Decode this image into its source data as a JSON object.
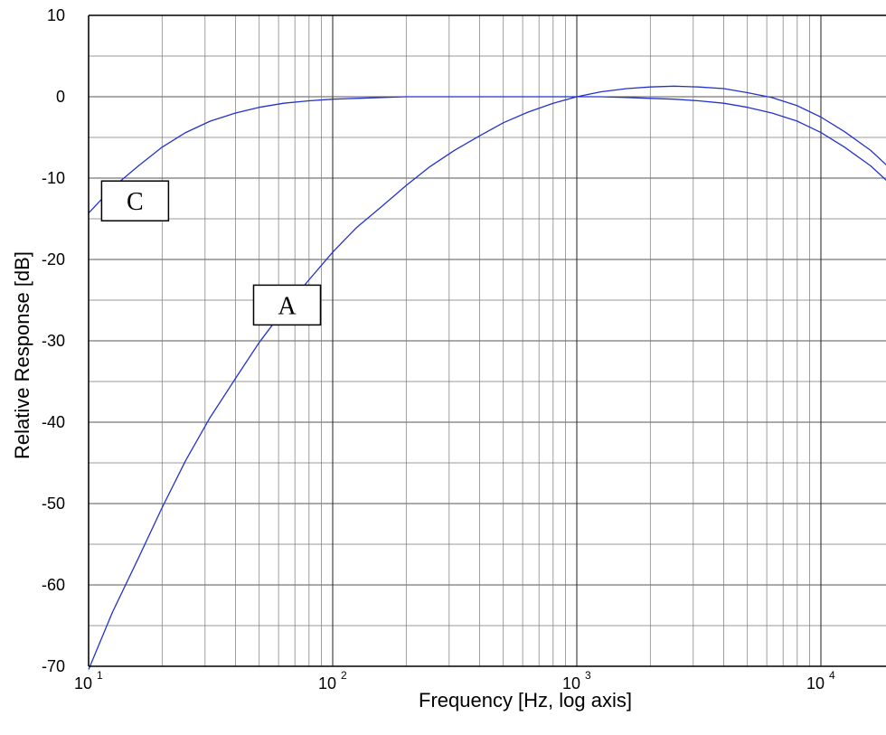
{
  "chart_data": {
    "type": "line",
    "xscale": "log",
    "xlim": [
      10,
      20000
    ],
    "ylim": [
      -70,
      10
    ],
    "xlabel": "Frequency [Hz, log axis]",
    "ylabel": "Relative Response [dB]",
    "grid": true,
    "y_ticks": [
      {
        "value": 10,
        "label": "10"
      },
      {
        "value": 0,
        "label": "0"
      },
      {
        "value": -10,
        "label": "-10"
      },
      {
        "value": -20,
        "label": "-20"
      },
      {
        "value": -30,
        "label": "-30"
      },
      {
        "value": -40,
        "label": "-40"
      },
      {
        "value": -50,
        "label": "-50"
      },
      {
        "value": -60,
        "label": "-60"
      },
      {
        "value": -70,
        "label": "-70"
      }
    ],
    "x_ticks": [
      {
        "value": 10,
        "base": "10",
        "exp": "1"
      },
      {
        "value": 100,
        "base": "10",
        "exp": "2"
      },
      {
        "value": 1000,
        "base": "10",
        "exp": "3"
      },
      {
        "value": 10000,
        "base": "10",
        "exp": "4"
      }
    ],
    "series": [
      {
        "name": "A",
        "color": "#2233cc",
        "x": [
          10,
          12.5,
          16,
          20,
          25,
          31.5,
          40,
          50,
          63,
          80,
          100,
          125,
          160,
          200,
          250,
          315,
          400,
          500,
          630,
          800,
          1000,
          1250,
          1600,
          2000,
          2500,
          3150,
          4000,
          5000,
          6300,
          8000,
          10000,
          12500,
          16000,
          20000
        ],
        "y": [
          -70.4,
          -63.4,
          -56.7,
          -50.5,
          -44.7,
          -39.4,
          -34.6,
          -30.2,
          -26.2,
          -22.5,
          -19.1,
          -16.1,
          -13.4,
          -10.9,
          -8.6,
          -6.6,
          -4.8,
          -3.2,
          -1.9,
          -0.8,
          0.0,
          0.6,
          1.0,
          1.2,
          1.3,
          1.2,
          1.0,
          0.5,
          -0.1,
          -1.1,
          -2.5,
          -4.3,
          -6.6,
          -9.3
        ]
      },
      {
        "name": "C",
        "color": "#2233cc",
        "x": [
          10,
          12.5,
          16,
          20,
          25,
          31.5,
          40,
          50,
          63,
          80,
          100,
          125,
          160,
          200,
          250,
          315,
          400,
          500,
          630,
          800,
          1000,
          1250,
          1600,
          2000,
          2500,
          3150,
          4000,
          5000,
          6300,
          8000,
          10000,
          12500,
          16000,
          20000
        ],
        "y": [
          -14.3,
          -11.2,
          -8.5,
          -6.2,
          -4.4,
          -3.0,
          -2.0,
          -1.3,
          -0.8,
          -0.5,
          -0.3,
          -0.2,
          -0.1,
          0.0,
          0.0,
          0.0,
          0.0,
          0.0,
          0.0,
          0.0,
          0.0,
          0.0,
          -0.1,
          -0.2,
          -0.3,
          -0.5,
          -0.8,
          -1.3,
          -2.0,
          -3.0,
          -4.4,
          -6.2,
          -8.5,
          -11.2
        ]
      }
    ],
    "annotations": [
      {
        "text": "C",
        "x": 15.5,
        "y": -12.8
      },
      {
        "text": "A",
        "x": 65,
        "y": -25.6
      }
    ]
  }
}
